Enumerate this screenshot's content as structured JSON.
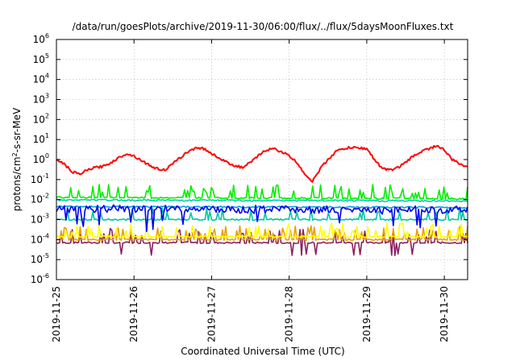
{
  "chart_data": {
    "type": "line",
    "title": "/data/run/goesPlots/archive/2019-11-30/06:00/flux/../flux/5daysMoonFluxes.txt",
    "xlabel": "Coordinated Universal Time (UTC)",
    "ylabel": "protons/cm²-s-sr-MeV",
    "ylabel_parts": {
      "pre": "protons/cm",
      "sup": "2",
      "post": "-s-sr-MeV"
    },
    "yscale": "log",
    "xlim": [
      0,
      5.3
    ],
    "ylim_exponents": [
      -6,
      6
    ],
    "y_tick_exponents": [
      -6,
      -5,
      -4,
      -3,
      -2,
      -1,
      0,
      1,
      2,
      3,
      4,
      5,
      6
    ],
    "y_tick_base": "10",
    "x_tick_labels": [
      "2019-11-25",
      "2019-11-26",
      "2019-11-27",
      "2019-11-28",
      "2019-11-29",
      "2019-11-30"
    ],
    "x_tick_values_days": [
      0,
      1,
      2,
      3,
      4,
      5
    ],
    "grid": true,
    "series": [
      {
        "color": "#ff0000",
        "x": [
          0,
          0.1,
          0.2,
          0.3,
          0.4,
          0.5,
          0.6,
          0.7,
          0.8,
          0.9,
          1.0,
          1.1,
          1.2,
          1.3,
          1.4,
          1.5,
          1.6,
          1.7,
          1.8,
          1.9,
          2.0,
          2.1,
          2.2,
          2.3,
          2.4,
          2.5,
          2.6,
          2.7,
          2.8,
          2.9,
          3.0,
          3.1,
          3.2,
          3.3,
          3.4,
          3.5,
          3.6,
          3.7,
          3.8,
          3.9,
          4.0,
          4.1,
          4.2,
          4.3,
          4.4,
          4.5,
          4.6,
          4.7,
          4.8,
          4.9,
          5.0,
          5.1,
          5.2,
          5.3
        ],
        "y": [
          1.0,
          0.6,
          0.25,
          0.18,
          0.3,
          0.4,
          0.45,
          0.7,
          1.2,
          2.0,
          1.5,
          0.9,
          0.5,
          0.35,
          0.3,
          0.6,
          1.3,
          2.5,
          4.0,
          3.5,
          2.0,
          1.2,
          0.7,
          0.5,
          0.4,
          0.7,
          1.5,
          3.0,
          3.5,
          2.5,
          1.5,
          0.7,
          0.2,
          0.08,
          0.35,
          1.0,
          2.5,
          3.5,
          4.0,
          3.8,
          3.5,
          1.0,
          0.35,
          0.3,
          0.4,
          0.7,
          1.5,
          2.5,
          3.5,
          5.0,
          3.0,
          1.0,
          0.6,
          0.45
        ]
      },
      {
        "color": "#00ee00",
        "x": [
          0,
          5.3
        ],
        "y": [
          0.013,
          0.011
        ],
        "band": "spiky"
      },
      {
        "color": "#00d0a8",
        "x": [
          0,
          5.3
        ],
        "y": [
          0.0095,
          0.0085
        ],
        "band": "flat"
      },
      {
        "color": "#00a0e0",
        "x": [
          0,
          5.3
        ],
        "y": [
          0.0045,
          0.004
        ],
        "band": "flat"
      },
      {
        "color": "#0000ee",
        "x": [
          0,
          5.3
        ],
        "y": [
          0.0035,
          0.003
        ],
        "band": "noisy"
      },
      {
        "color": "#00c8a0",
        "x": [
          0,
          5.3
        ],
        "y": [
          0.001,
          0.001
        ],
        "band": "flat-spikes"
      },
      {
        "color": "#ffff00",
        "x": [
          0,
          5.3
        ],
        "y": [
          0.00014,
          0.00014
        ],
        "band": "spiky"
      },
      {
        "color": "#e8a000",
        "x": [
          0,
          5.3
        ],
        "y": [
          0.0001,
          0.0001
        ],
        "band": "spiky"
      },
      {
        "color": "#8b2060",
        "x": [
          0,
          5.3
        ],
        "y": [
          7e-05,
          7e-05
        ],
        "band": "spiky"
      }
    ]
  }
}
